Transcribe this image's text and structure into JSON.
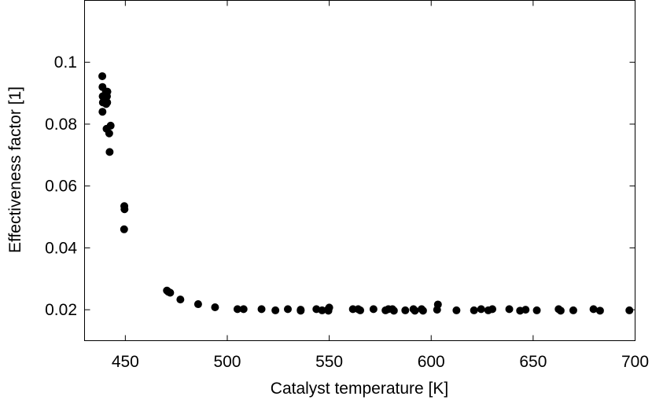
{
  "chart_data": {
    "type": "scatter",
    "title": "",
    "xlabel": "Catalyst temperature [K]",
    "ylabel": "Effectiveness factor [1]",
    "xlim": [
      430,
      700
    ],
    "ylim": [
      0.01,
      0.12
    ],
    "xticks": [
      450,
      500,
      550,
      600,
      650,
      700
    ],
    "xtick_labels": [
      "450",
      "500",
      "550",
      "600",
      "650",
      "700"
    ],
    "yticks": [
      0.02,
      0.04,
      0.06,
      0.08,
      0.1
    ],
    "ytick_labels": [
      "0.02",
      "0.04",
      "0.06",
      "0.08",
      "0.1"
    ],
    "grid": false,
    "marker_color": "#000000",
    "series": [
      {
        "points": [
          [
            438.7,
            0.0955
          ],
          [
            438.8,
            0.092
          ],
          [
            438.9,
            0.089
          ],
          [
            439.0,
            0.087
          ],
          [
            438.8,
            0.084
          ],
          [
            440.5,
            0.0905
          ],
          [
            440.3,
            0.089
          ],
          [
            440.6,
            0.0865
          ],
          [
            441.2,
            0.0905
          ],
          [
            441.0,
            0.089
          ],
          [
            441.1,
            0.087
          ],
          [
            440.8,
            0.0785
          ],
          [
            442.8,
            0.0795
          ],
          [
            442.1,
            0.077
          ],
          [
            442.3,
            0.071
          ],
          [
            449.5,
            0.0535
          ],
          [
            449.6,
            0.0525
          ],
          [
            449.4,
            0.046
          ],
          [
            470.4,
            0.0262
          ],
          [
            471.1,
            0.0258
          ],
          [
            472.0,
            0.0255
          ],
          [
            477.0,
            0.0233
          ],
          [
            485.7,
            0.0218
          ],
          [
            494.0,
            0.0208
          ],
          [
            505.0,
            0.0202
          ],
          [
            508.0,
            0.0202
          ],
          [
            516.8,
            0.0202
          ],
          [
            523.6,
            0.0198
          ],
          [
            529.7,
            0.0202
          ],
          [
            536.0,
            0.02
          ],
          [
            536.0,
            0.0197
          ],
          [
            543.7,
            0.0202
          ],
          [
            546.5,
            0.0198
          ],
          [
            549.3,
            0.02
          ],
          [
            550.0,
            0.0207
          ],
          [
            549.6,
            0.0197
          ],
          [
            561.6,
            0.0202
          ],
          [
            564.2,
            0.0202
          ],
          [
            565.2,
            0.0198
          ],
          [
            571.7,
            0.0202
          ],
          [
            577.6,
            0.0198
          ],
          [
            579.0,
            0.0202
          ],
          [
            581.0,
            0.0202
          ],
          [
            581.7,
            0.0197
          ],
          [
            587.3,
            0.0198
          ],
          [
            591.3,
            0.0202
          ],
          [
            592.0,
            0.0197
          ],
          [
            595.3,
            0.0202
          ],
          [
            596.0,
            0.0197
          ],
          [
            602.9,
            0.02
          ],
          [
            603.3,
            0.0217
          ],
          [
            612.4,
            0.0198
          ],
          [
            621.0,
            0.0198
          ],
          [
            624.5,
            0.0202
          ],
          [
            628.0,
            0.0198
          ],
          [
            630.0,
            0.0202
          ],
          [
            638.3,
            0.0202
          ],
          [
            643.6,
            0.0197
          ],
          [
            646.3,
            0.02
          ],
          [
            651.8,
            0.0198
          ],
          [
            662.5,
            0.0202
          ],
          [
            663.5,
            0.0197
          ],
          [
            669.7,
            0.0198
          ],
          [
            679.6,
            0.0202
          ],
          [
            682.8,
            0.0197
          ],
          [
            697.2,
            0.0198
          ]
        ]
      }
    ]
  }
}
